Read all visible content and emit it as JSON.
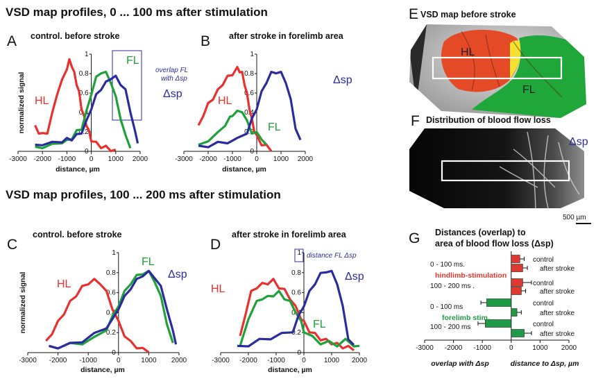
{
  "headings": {
    "top": "VSD map profiles, 0 ... 100 ms after stimulation",
    "mid": "VSD map profiles, 100 ... 200 ms after stimulation"
  },
  "colors": {
    "HL": "#e8312f",
    "FL": "#1fa13a",
    "dsp": "#2b2ba0",
    "bar_hl": "#e03a30",
    "bar_fl": "#1f9a45"
  },
  "chart_data": [
    {
      "id": "A",
      "letter": "A",
      "type": "line",
      "title": "control. before stroke",
      "xlabel": "distance, µm",
      "ylabel": "normalized signal",
      "xlim": [
        -3000,
        2000
      ],
      "ylim": [
        0,
        1
      ],
      "x_ticks": [
        "-3000",
        "-2000",
        "-1000",
        "0",
        "1000",
        "2000"
      ],
      "y_ticks": [
        "0",
        "0.2",
        "0.4",
        "0.6",
        "0.8",
        "1"
      ],
      "annotation": [
        "overlap FL",
        "with Δsp"
      ],
      "series": [
        {
          "name": "HL",
          "color": "#e8312f",
          "x": [
            -2300,
            -2150,
            -2000,
            -1800,
            -1600,
            -1400,
            -1200,
            -1000,
            -900,
            -800,
            -700,
            -600,
            -500,
            -400,
            -300,
            -200,
            -100,
            0,
            200,
            400,
            600,
            800,
            1000
          ],
          "y": [
            0.25,
            0.2,
            0.17,
            0.2,
            0.38,
            0.6,
            0.72,
            0.86,
            0.93,
            0.89,
            0.8,
            0.7,
            0.6,
            0.45,
            0.35,
            0.28,
            0.2,
            0.12,
            0.08,
            0.05,
            0.04,
            0.02,
            0.0
          ]
        },
        {
          "name": "FL",
          "color": "#1fa13a",
          "x": [
            -2300,
            -2000,
            -1600,
            -1200,
            -1000,
            -800,
            -600,
            -400,
            -200,
            0,
            200,
            400,
            600,
            800,
            1000,
            1200,
            1400,
            1600
          ],
          "y": [
            0.03,
            0.05,
            0.06,
            0.1,
            0.1,
            0.14,
            0.2,
            0.24,
            0.4,
            0.6,
            0.75,
            0.82,
            0.8,
            0.72,
            0.55,
            0.35,
            0.15,
            0.05
          ]
        },
        {
          "name": "Δsp",
          "color": "#2b2ba0",
          "x": [
            -2300,
            -2000,
            -1600,
            -1200,
            -1000,
            -800,
            -600,
            -400,
            -200,
            0,
            200,
            400,
            600,
            800,
            1000,
            1200,
            1400,
            1600,
            1800,
            1900
          ],
          "y": [
            0.05,
            0.08,
            0.08,
            0.11,
            0.12,
            0.13,
            0.16,
            0.2,
            0.3,
            0.45,
            0.57,
            0.65,
            0.7,
            0.76,
            0.76,
            0.7,
            0.62,
            0.42,
            0.18,
            0.1
          ]
        }
      ]
    },
    {
      "id": "B",
      "letter": "B",
      "type": "line",
      "title": "after stroke in forelimb area",
      "xlabel": "distance, µm",
      "ylabel": "",
      "xlim": [
        -3000,
        2000
      ],
      "ylim": [
        0,
        1
      ],
      "x_ticks": [
        "-3000",
        "-2000",
        "-1000",
        "0",
        "1000",
        "2000"
      ],
      "y_ticks": [
        "0",
        "0.2",
        "0.4",
        "0.6",
        "0.8",
        "1"
      ],
      "annotation": [],
      "series": [
        {
          "name": "HL",
          "color": "#e8312f",
          "x": [
            -2400,
            -2200,
            -2000,
            -1800,
            -1600,
            -1400,
            -1200,
            -1000,
            -800,
            -700,
            -600,
            -500,
            -400,
            -300,
            -200,
            -100,
            0,
            200,
            400,
            600
          ],
          "y": [
            0.25,
            0.38,
            0.48,
            0.55,
            0.62,
            0.7,
            0.76,
            0.8,
            0.85,
            0.83,
            0.8,
            0.7,
            0.58,
            0.45,
            0.32,
            0.22,
            0.15,
            0.08,
            0.05,
            0.02
          ]
        },
        {
          "name": "FL",
          "color": "#1fa13a",
          "x": [
            -2400,
            -2000,
            -1600,
            -1300,
            -1100,
            -1000,
            -800,
            -600,
            -400,
            -200,
            0,
            200,
            400
          ],
          "y": [
            0.05,
            0.12,
            0.18,
            0.28,
            0.34,
            0.38,
            0.4,
            0.42,
            0.3,
            0.2,
            0.18,
            0.14,
            0.05
          ]
        },
        {
          "name": "Δsp",
          "color": "#2b2ba0",
          "x": [
            -2400,
            -2000,
            -1600,
            -1200,
            -800,
            -400,
            -200,
            0,
            200,
            400,
            600,
            800,
            1000,
            1200,
            1400,
            1600,
            1800
          ],
          "y": [
            0.04,
            0.06,
            0.08,
            0.1,
            0.12,
            0.2,
            0.32,
            0.45,
            0.6,
            0.72,
            0.8,
            0.82,
            0.8,
            0.72,
            0.52,
            0.25,
            0.1
          ]
        }
      ]
    },
    {
      "id": "C",
      "letter": "C",
      "type": "line",
      "title": "control. before stroke",
      "xlabel": "distance, µm",
      "ylabel": "normalized signal",
      "xlim": [
        -3000,
        2000
      ],
      "ylim": [
        0,
        1
      ],
      "x_ticks": [
        "-3000",
        "-2000",
        "-1000",
        "0",
        "1000",
        "2000"
      ],
      "y_ticks": [
        "0",
        "0.2",
        "0.4",
        "0.6",
        "0.8",
        "1"
      ],
      "annotation": [],
      "series": [
        {
          "name": "HL",
          "color": "#e8312f",
          "x": [
            -2400,
            -2200,
            -2000,
            -1800,
            -1600,
            -1400,
            -1200,
            -1000,
            -800,
            -600,
            -400,
            -200,
            0,
            200,
            400,
            600,
            800,
            1000
          ],
          "y": [
            0.1,
            0.2,
            0.3,
            0.4,
            0.5,
            0.58,
            0.65,
            0.7,
            0.72,
            0.7,
            0.6,
            0.45,
            0.3,
            0.18,
            0.1,
            0.06,
            0.03,
            0.02
          ]
        },
        {
          "name": "FL",
          "color": "#1fa13a",
          "x": [
            -2300,
            -2000,
            -1600,
            -1200,
            -800,
            -400,
            -200,
            0,
            200,
            400,
            600,
            800,
            1000,
            1200,
            1400,
            1600,
            1800
          ],
          "y": [
            0.05,
            0.06,
            0.08,
            0.1,
            0.14,
            0.24,
            0.35,
            0.48,
            0.6,
            0.7,
            0.76,
            0.8,
            0.8,
            0.72,
            0.55,
            0.3,
            0.08
          ]
        },
        {
          "name": "Δsp",
          "color": "#2b2ba0",
          "x": [
            -2300,
            -2000,
            -1600,
            -1200,
            -800,
            -400,
            -200,
            0,
            200,
            400,
            600,
            800,
            1000,
            1200,
            1400,
            1600,
            1800,
            1900
          ],
          "y": [
            0.05,
            0.06,
            0.08,
            0.12,
            0.18,
            0.26,
            0.32,
            0.45,
            0.55,
            0.65,
            0.72,
            0.78,
            0.8,
            0.76,
            0.65,
            0.45,
            0.2,
            0.1
          ]
        }
      ]
    },
    {
      "id": "D",
      "letter": "D",
      "type": "line",
      "title": "after stroke in forelimb area",
      "xlabel": "distance, µm",
      "ylabel": "",
      "xlim": [
        -3000,
        2000
      ],
      "ylim": [
        0,
        1
      ],
      "x_ticks": [
        "-3000",
        "-2000",
        "-1000",
        "0",
        "1000",
        "2000"
      ],
      "y_ticks": [
        "0",
        "0.2",
        "0.4",
        "0.6",
        "0.8",
        "1"
      ],
      "annotation": [
        "distance FL Δsp"
      ],
      "series": [
        {
          "name": "HL",
          "color": "#e8312f",
          "x": [
            -2300,
            -2100,
            -1900,
            -1700,
            -1500,
            -1300,
            -1100,
            -900,
            -700,
            -500,
            -300,
            -100,
            0,
            200,
            400,
            600,
            800,
            1000,
            1200,
            1400,
            1600,
            1800
          ],
          "y": [
            0.15,
            0.4,
            0.6,
            0.66,
            0.68,
            0.7,
            0.72,
            0.66,
            0.62,
            0.55,
            0.45,
            0.35,
            0.3,
            0.22,
            0.18,
            0.14,
            0.12,
            0.1,
            0.08,
            0.06,
            0.05,
            0.04
          ]
        },
        {
          "name": "FL",
          "color": "#1fa13a",
          "x": [
            -2300,
            -2000,
            -1700,
            -1500,
            -1300,
            -1100,
            -900,
            -700,
            -500,
            -300,
            -100,
            0,
            300,
            600,
            900,
            1200,
            1500,
            1800,
            2000
          ],
          "y": [
            0.05,
            0.35,
            0.5,
            0.55,
            0.55,
            0.58,
            0.6,
            0.55,
            0.5,
            0.42,
            0.3,
            0.22,
            0.15,
            0.1,
            0.1,
            0.08,
            0.12,
            0.08,
            0.05
          ]
        },
        {
          "name": "Δsp",
          "color": "#2b2ba0",
          "x": [
            -2400,
            -2000,
            -1600,
            -1200,
            -800,
            -400,
            -200,
            0,
            200,
            400,
            600,
            800,
            1000,
            1200,
            1400,
            1600,
            1800
          ],
          "y": [
            0.05,
            0.08,
            0.12,
            0.15,
            0.18,
            0.22,
            0.35,
            0.48,
            0.6,
            0.7,
            0.78,
            0.82,
            0.8,
            0.7,
            0.45,
            0.15,
            0.06
          ]
        }
      ]
    },
    {
      "id": "G",
      "letter": "G",
      "type": "bar",
      "title": [
        "Distances (overlap) to",
        "area of blood flow loss (Δsp)"
      ],
      "xlim": [
        -3000,
        2000
      ],
      "x_ticks": [
        "-3000",
        "-2000",
        "-1000",
        "0",
        "1000",
        "2000"
      ],
      "xlabel_left": "overlap with Δsp",
      "xlabel_right": "distance to Δsp, µm",
      "group_labels": [
        "hindlimb-stimulation",
        "forelimb  stim."
      ],
      "time_labels": [
        "0 - 100 ms.",
        "100 - 200 ms .",
        "0 - 100 ms",
        "100 - 200 ms"
      ],
      "bars": [
        {
          "label": "control",
          "group": "hindlimb",
          "value": 300,
          "err": 150
        },
        {
          "label": "after stroke",
          "group": "hindlimb",
          "value": 400,
          "err": 160
        },
        {
          "label": "control",
          "group": "hindlimb",
          "value": 400,
          "err": 300
        },
        {
          "label": "after stroke",
          "group": "hindlimb",
          "value": 350,
          "err": 150
        },
        {
          "label": "control",
          "group": "forelimb",
          "value": -850,
          "err": 200
        },
        {
          "label": "after stroke",
          "group": "forelimb",
          "value": 200,
          "err": 150
        },
        {
          "label": "control",
          "group": "forelimb",
          "value": -900,
          "err": 250
        },
        {
          "label": "after stroke",
          "group": "forelimb",
          "value": 450,
          "err": 250
        }
      ]
    }
  ],
  "images": {
    "E": {
      "letter": "E",
      "title": "VSD map before stroke",
      "labels": [
        "HL",
        "FL"
      ]
    },
    "F": {
      "letter": "F",
      "title": "Distribution of blood flow loss",
      "labels": [
        "Δsp"
      ]
    },
    "scalebar": "500 µm"
  }
}
